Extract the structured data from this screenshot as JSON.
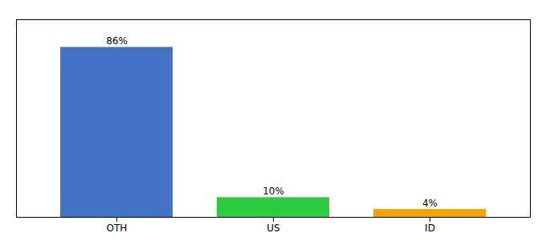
{
  "chart_data": {
    "type": "bar",
    "categories": [
      "OTH",
      "US",
      "ID"
    ],
    "values": [
      86,
      10,
      4
    ],
    "value_labels": [
      "86%",
      "10%",
      "4%"
    ],
    "colors": [
      "#4472c4",
      "#2ecc40",
      "#f4a400"
    ],
    "ylim": [
      0,
      100
    ],
    "data_labels": true,
    "tick_labels": "x"
  }
}
